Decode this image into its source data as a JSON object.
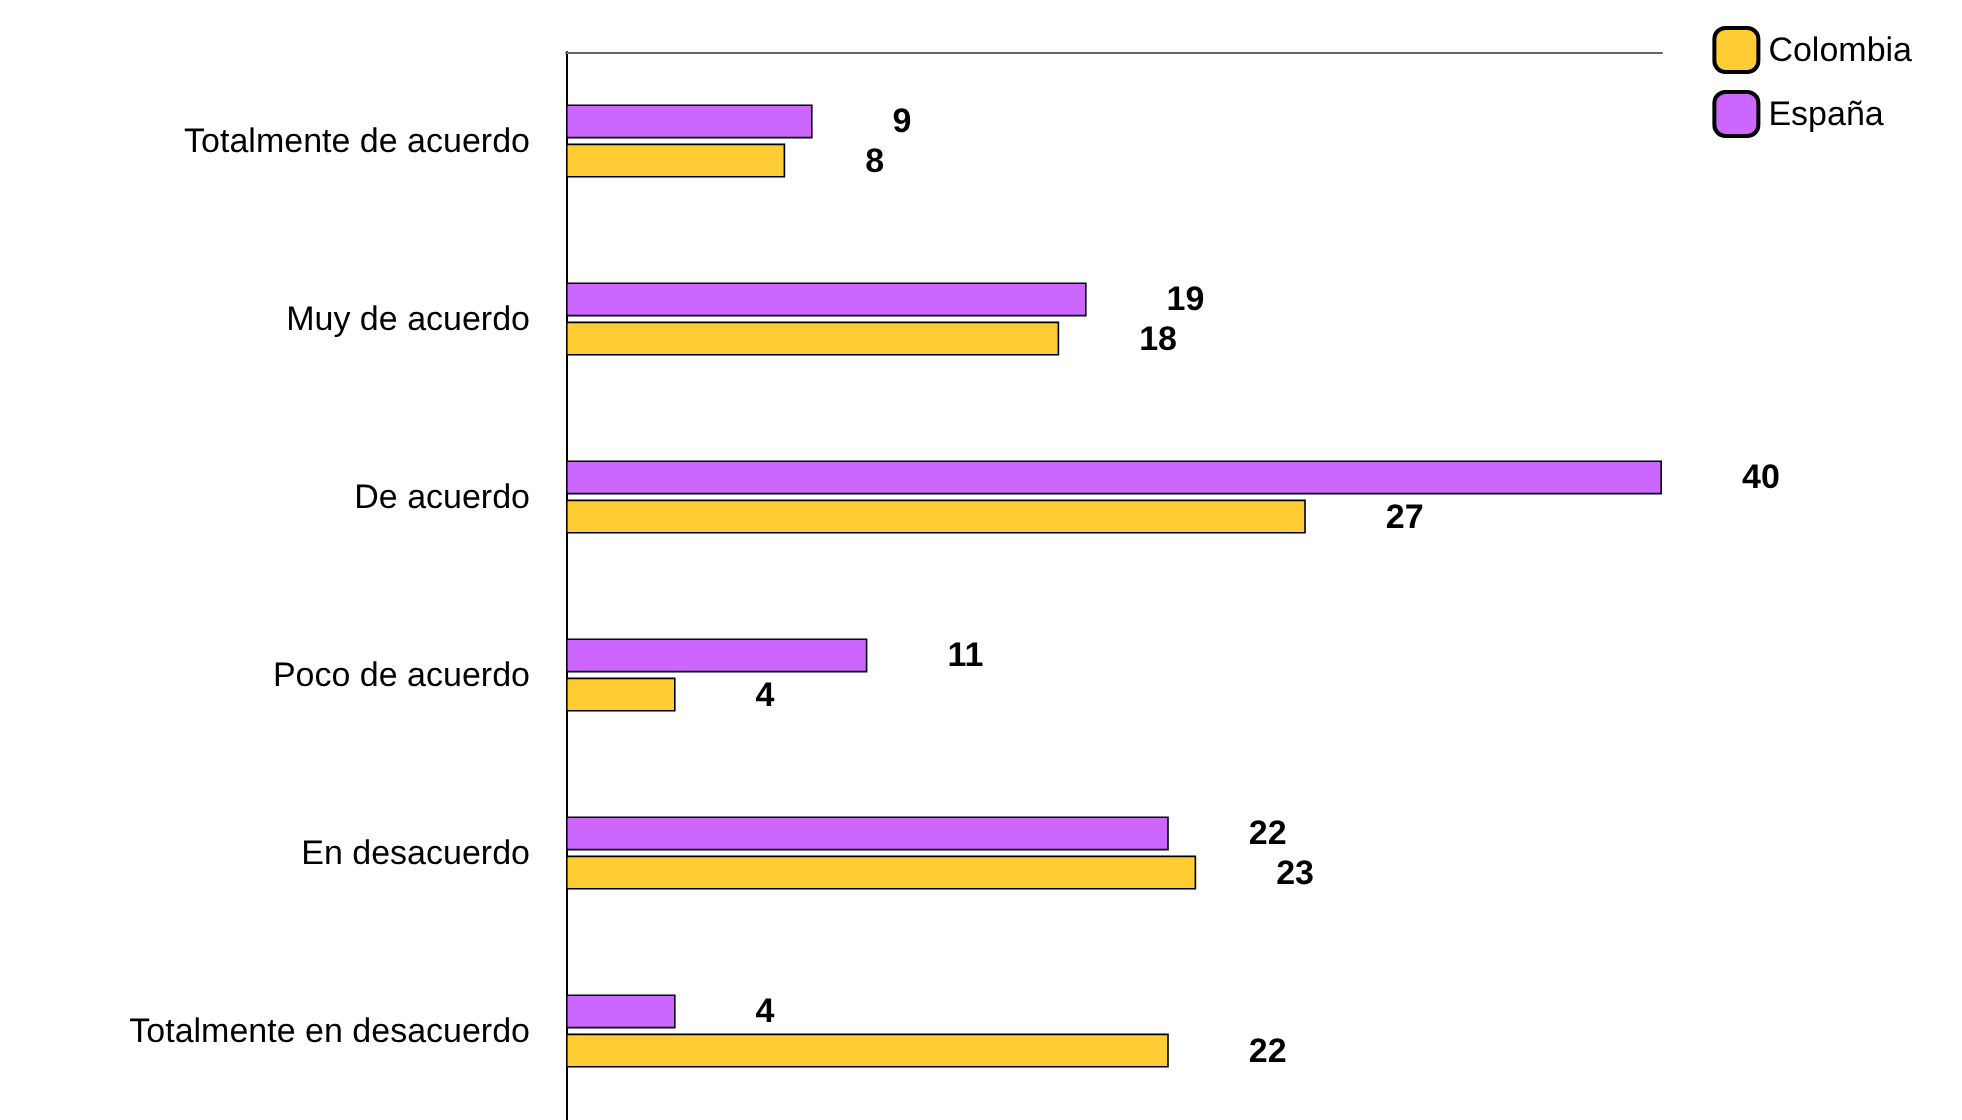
{
  "chart_data": {
    "type": "bar",
    "orientation": "horizontal",
    "categories": [
      "Totalmente de acuerdo",
      "Muy de acuerdo",
      "De acuerdo",
      "Poco de acuerdo",
      "En desacuerdo",
      "Totalmente en desacuerdo"
    ],
    "series": [
      {
        "name": "Colombia",
        "color": "#ffcc33",
        "values": [
          8,
          18,
          27,
          4,
          23,
          22
        ]
      },
      {
        "name": "España",
        "color": "#cc66ff",
        "values": [
          9,
          19,
          40,
          11,
          22,
          4
        ]
      }
    ],
    "data_labels": true,
    "legend": "top right",
    "grid": false,
    "tick_labels": "y"
  }
}
